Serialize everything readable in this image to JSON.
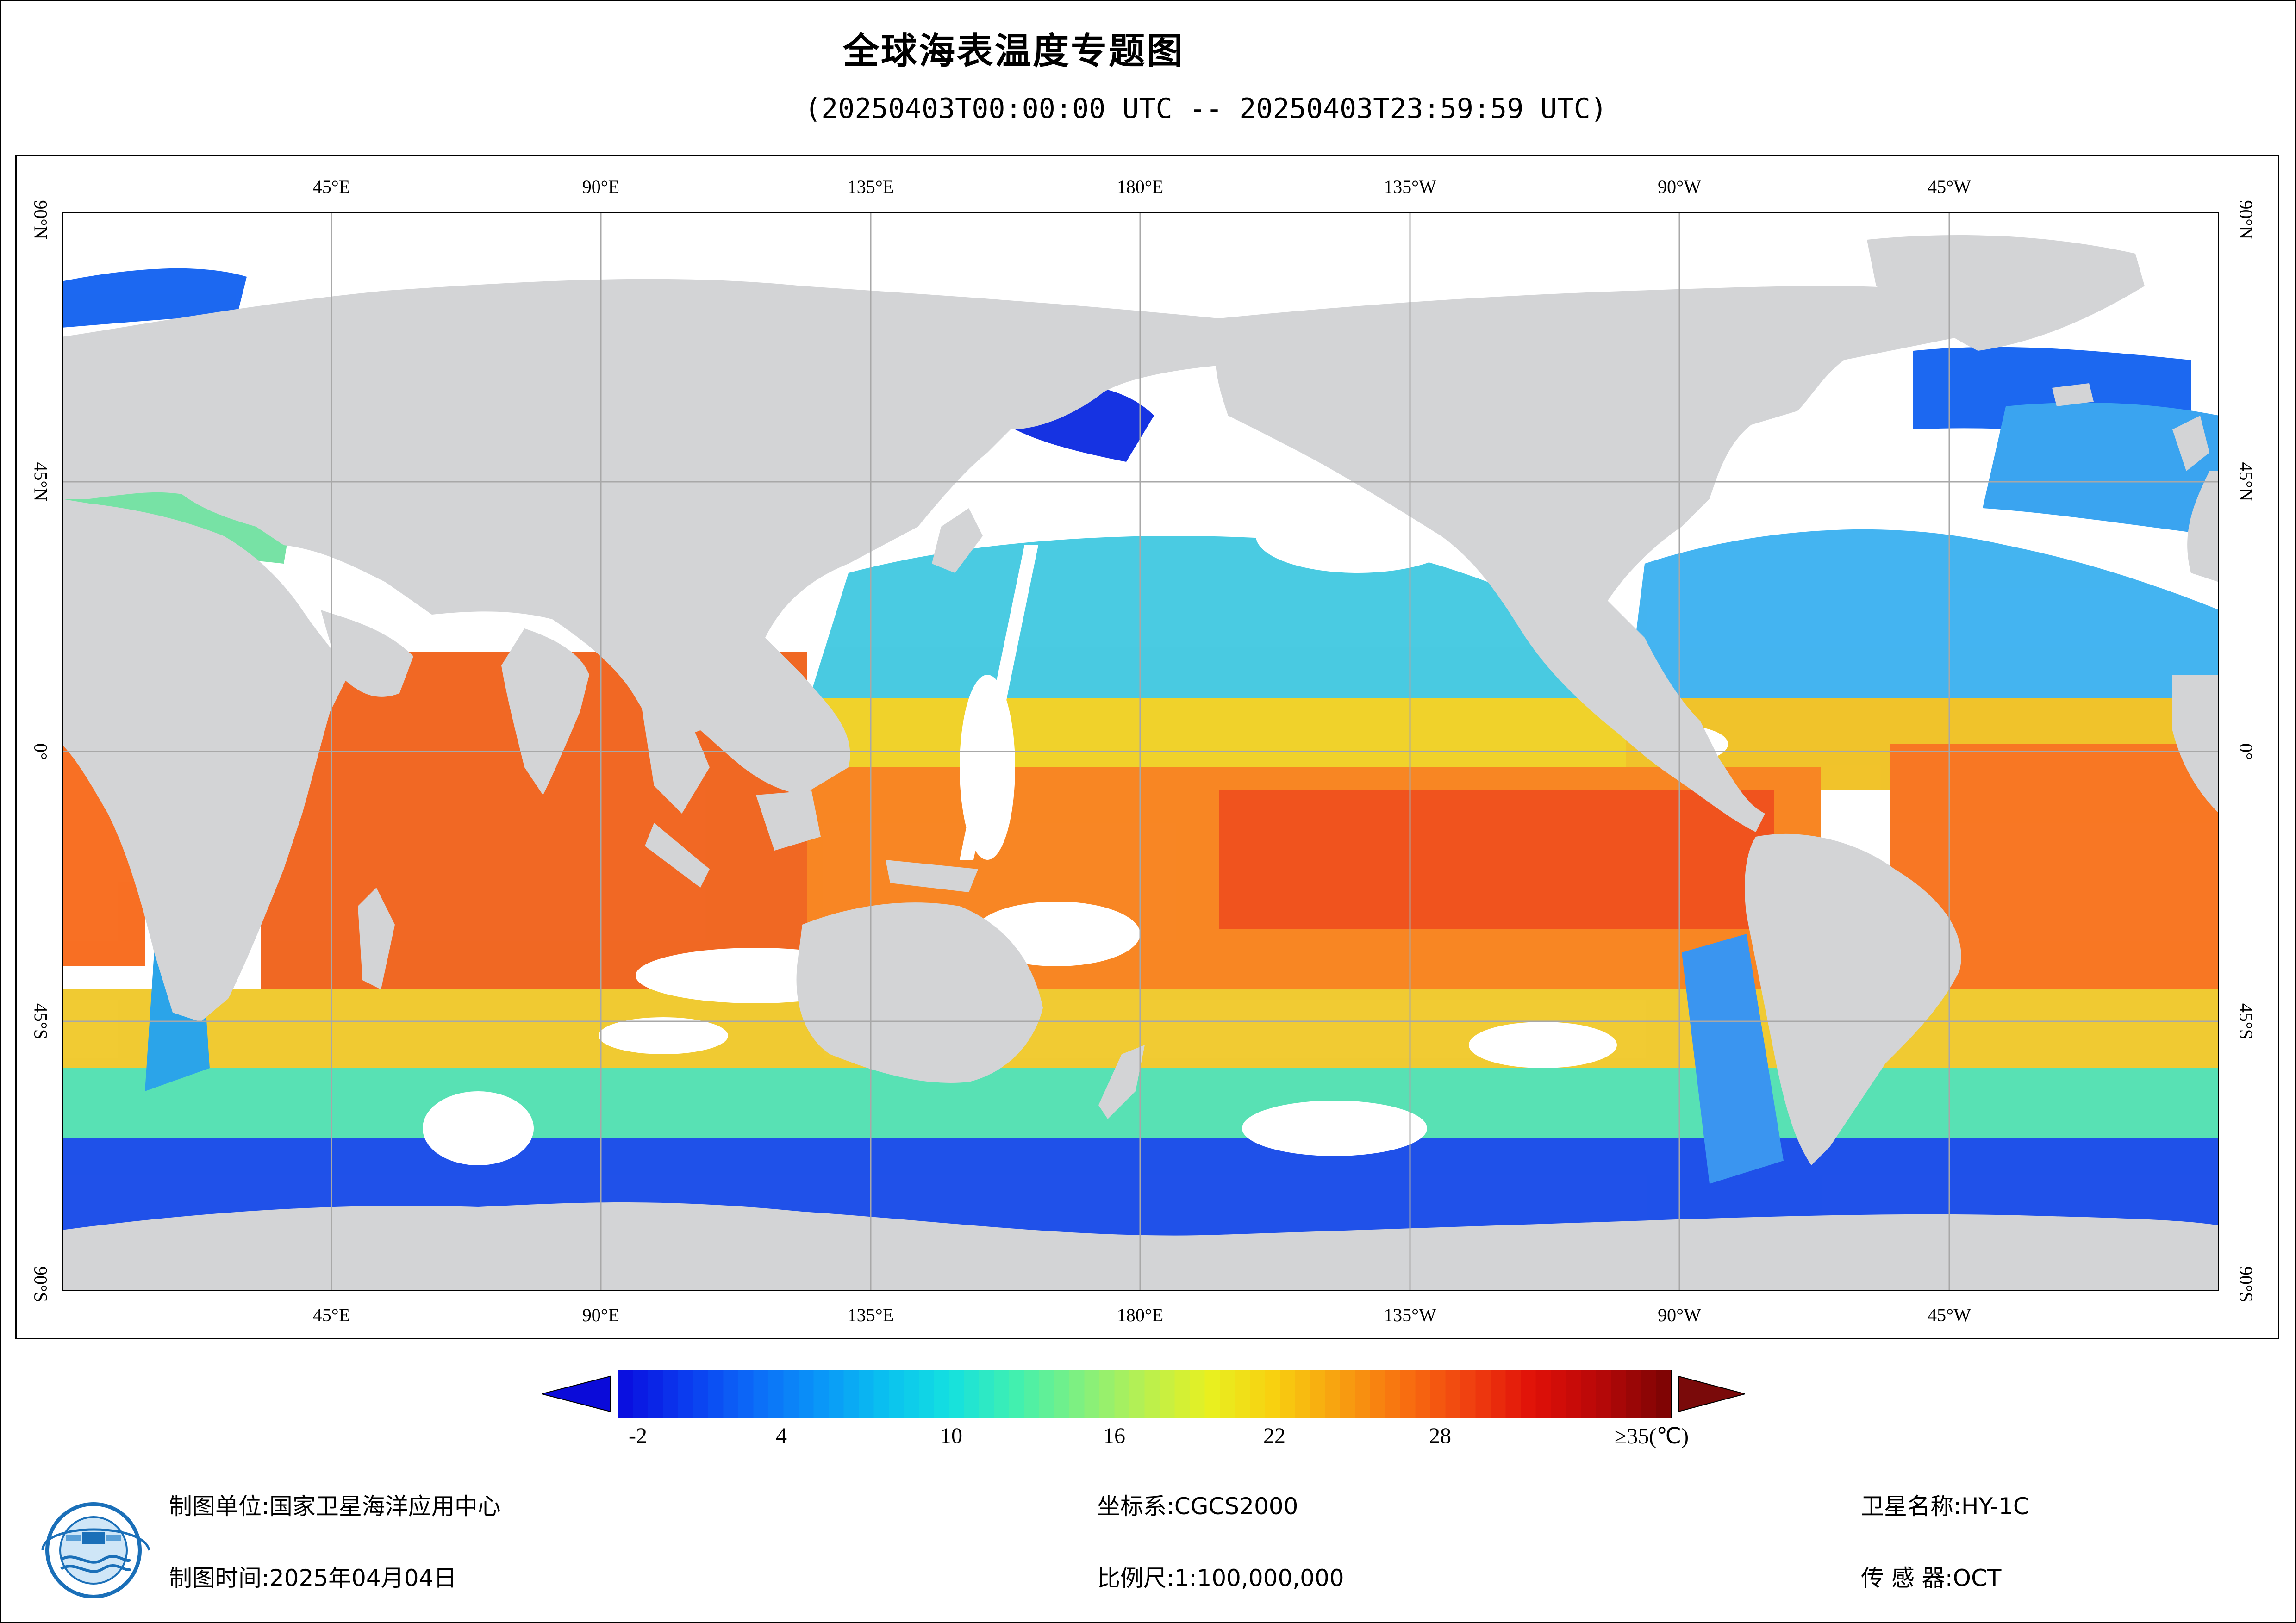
{
  "title": "全球海表温度专题图",
  "subtitle": "(20250403T00:00:00 UTC -- 20250403T23:59:59 UTC)",
  "map": {
    "top_lon_labels": [
      "45°E",
      "90°E",
      "135°E",
      "180°E",
      "135°W",
      "90°W",
      "45°W"
    ],
    "bottom_lon_labels": [
      "45°E",
      "90°E",
      "135°E",
      "180°E",
      "135°W",
      "90°W",
      "45°W"
    ],
    "lat_labels": [
      "90°N",
      "45°N",
      "0°",
      "45°S",
      "90°S"
    ],
    "colors": {
      "land": "#d3d4d6",
      "no_data": "#ffffff",
      "grid": "#a8a8a8"
    }
  },
  "legend": {
    "ticks": [
      "-2",
      "4",
      "10",
      "16",
      "22",
      "28",
      "≥35(℃)"
    ],
    "min_color": "#0b0bd9",
    "max_color": "#7a0a0a",
    "colors": [
      "#0a10e0",
      "#0b3ef0",
      "#0c6cf8",
      "#0a96f8",
      "#0ac0f0",
      "#14e0e0",
      "#40f0b0",
      "#80f080",
      "#b8f050",
      "#e8f020",
      "#f8d010",
      "#f8a010",
      "#f87010",
      "#f04010",
      "#e01008",
      "#b80808",
      "#800404"
    ]
  },
  "info": {
    "org_label": "制图单位:国家卫星海洋应用中心",
    "date_label": "制图时间:2025年04月04日",
    "crs_label": "坐标系:CGCS2000",
    "scale_label": "比例尺:1:100,000,000",
    "satellite_label": "卫星名称:HY-1C",
    "sensor_label": "传 感 器:OCT"
  }
}
